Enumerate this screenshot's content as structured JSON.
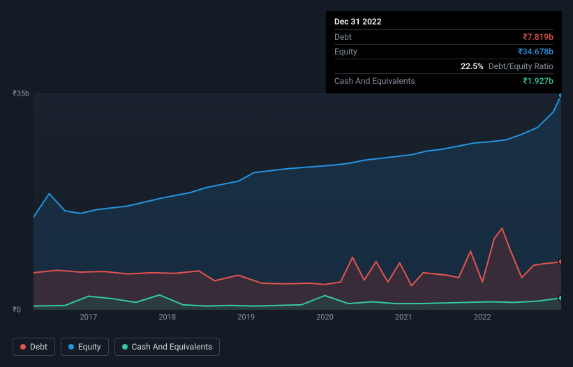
{
  "tooltip": {
    "date": "Dec 31 2022",
    "rows": [
      {
        "label": "Debt",
        "value": "₹7.819b",
        "color": "#e2544e"
      },
      {
        "label": "Equity",
        "value": "₹34.678b",
        "color": "#2394df"
      },
      {
        "label": "",
        "value": "22.5%",
        "suffix": "Debt/Equity Ratio",
        "color": "#ffffff"
      },
      {
        "label": "Cash And Equivalents",
        "value": "₹1.927b",
        "color": "#35c7a4"
      }
    ]
  },
  "chart": {
    "type": "area",
    "background_color": "#151b24",
    "plot_background_gradient": [
      "#19222e",
      "#151b24"
    ],
    "grid_color": "#262d38",
    "ylim": [
      0,
      35
    ],
    "y_ticks": [
      {
        "v": 0,
        "label": "₹0"
      },
      {
        "v": 35,
        "label": "₹35b"
      }
    ],
    "x_domain": [
      2016.3,
      2023.0
    ],
    "x_ticks": [
      2017,
      2018,
      2019,
      2020,
      2021,
      2022
    ],
    "label_fontsize": 11,
    "label_color": "#8a929e",
    "series": [
      {
        "name": "Equity",
        "color": "#2394df",
        "fill": "#1a3a55",
        "fill_opacity": 0.55,
        "line_width": 2,
        "x": [
          2016.3,
          2016.5,
          2016.7,
          2016.9,
          2017.1,
          2017.3,
          2017.5,
          2017.7,
          2017.9,
          2018.1,
          2018.3,
          2018.5,
          2018.7,
          2018.9,
          2019.1,
          2019.3,
          2019.5,
          2019.7,
          2019.9,
          2020.1,
          2020.3,
          2020.5,
          2020.7,
          2020.9,
          2021.1,
          2021.3,
          2021.5,
          2021.7,
          2021.9,
          2022.1,
          2022.3,
          2022.5,
          2022.7,
          2022.9,
          2023.0
        ],
        "y": [
          15.0,
          18.8,
          16.0,
          15.6,
          16.2,
          16.5,
          16.8,
          17.4,
          18.0,
          18.5,
          19.0,
          19.8,
          20.3,
          20.8,
          22.2,
          22.5,
          22.8,
          23.0,
          23.2,
          23.4,
          23.7,
          24.2,
          24.5,
          24.8,
          25.1,
          25.7,
          26.0,
          26.5,
          27.0,
          27.2,
          27.5,
          28.4,
          29.5,
          32.0,
          34.7
        ]
      },
      {
        "name": "Debt",
        "color": "#e2544e",
        "fill": "#5a2c34",
        "fill_opacity": 0.5,
        "line_width": 2,
        "x": [
          2016.3,
          2016.6,
          2016.9,
          2017.2,
          2017.5,
          2017.8,
          2018.1,
          2018.4,
          2018.6,
          2018.9,
          2019.2,
          2019.5,
          2019.8,
          2020.0,
          2020.2,
          2020.35,
          2020.5,
          2020.65,
          2020.8,
          2020.95,
          2021.1,
          2021.25,
          2021.4,
          2021.55,
          2021.7,
          2021.85,
          2022.0,
          2022.15,
          2022.25,
          2022.35,
          2022.5,
          2022.65,
          2022.8,
          2022.9,
          2023.0
        ],
        "y": [
          6.0,
          6.4,
          6.1,
          6.2,
          5.8,
          6.0,
          5.9,
          6.3,
          4.7,
          5.6,
          4.3,
          4.2,
          4.3,
          4.1,
          4.5,
          8.5,
          4.8,
          7.8,
          4.5,
          7.6,
          3.9,
          6.0,
          5.8,
          5.6,
          5.2,
          9.5,
          4.5,
          11.5,
          13.2,
          9.8,
          5.2,
          7.2,
          7.5,
          7.6,
          7.8
        ]
      },
      {
        "name": "Cash And Equivalents",
        "color": "#35c7a4",
        "fill": "#1e4a44",
        "fill_opacity": 0.5,
        "line_width": 2,
        "x": [
          2016.3,
          2016.7,
          2017.0,
          2017.3,
          2017.6,
          2017.9,
          2018.2,
          2018.5,
          2018.8,
          2019.1,
          2019.4,
          2019.7,
          2020.0,
          2020.3,
          2020.6,
          2020.9,
          2021.2,
          2021.5,
          2021.8,
          2022.1,
          2022.4,
          2022.7,
          2023.0
        ],
        "y": [
          0.6,
          0.7,
          2.2,
          1.8,
          1.2,
          2.4,
          0.8,
          0.6,
          0.7,
          0.6,
          0.7,
          0.8,
          2.3,
          1.0,
          1.3,
          1.0,
          1.0,
          1.1,
          1.2,
          1.3,
          1.2,
          1.4,
          1.9
        ]
      }
    ]
  },
  "legend": {
    "items": [
      {
        "label": "Debt",
        "color": "#e2544e"
      },
      {
        "label": "Equity",
        "color": "#2394df"
      },
      {
        "label": "Cash And Equivalents",
        "color": "#35c7a4"
      }
    ]
  }
}
